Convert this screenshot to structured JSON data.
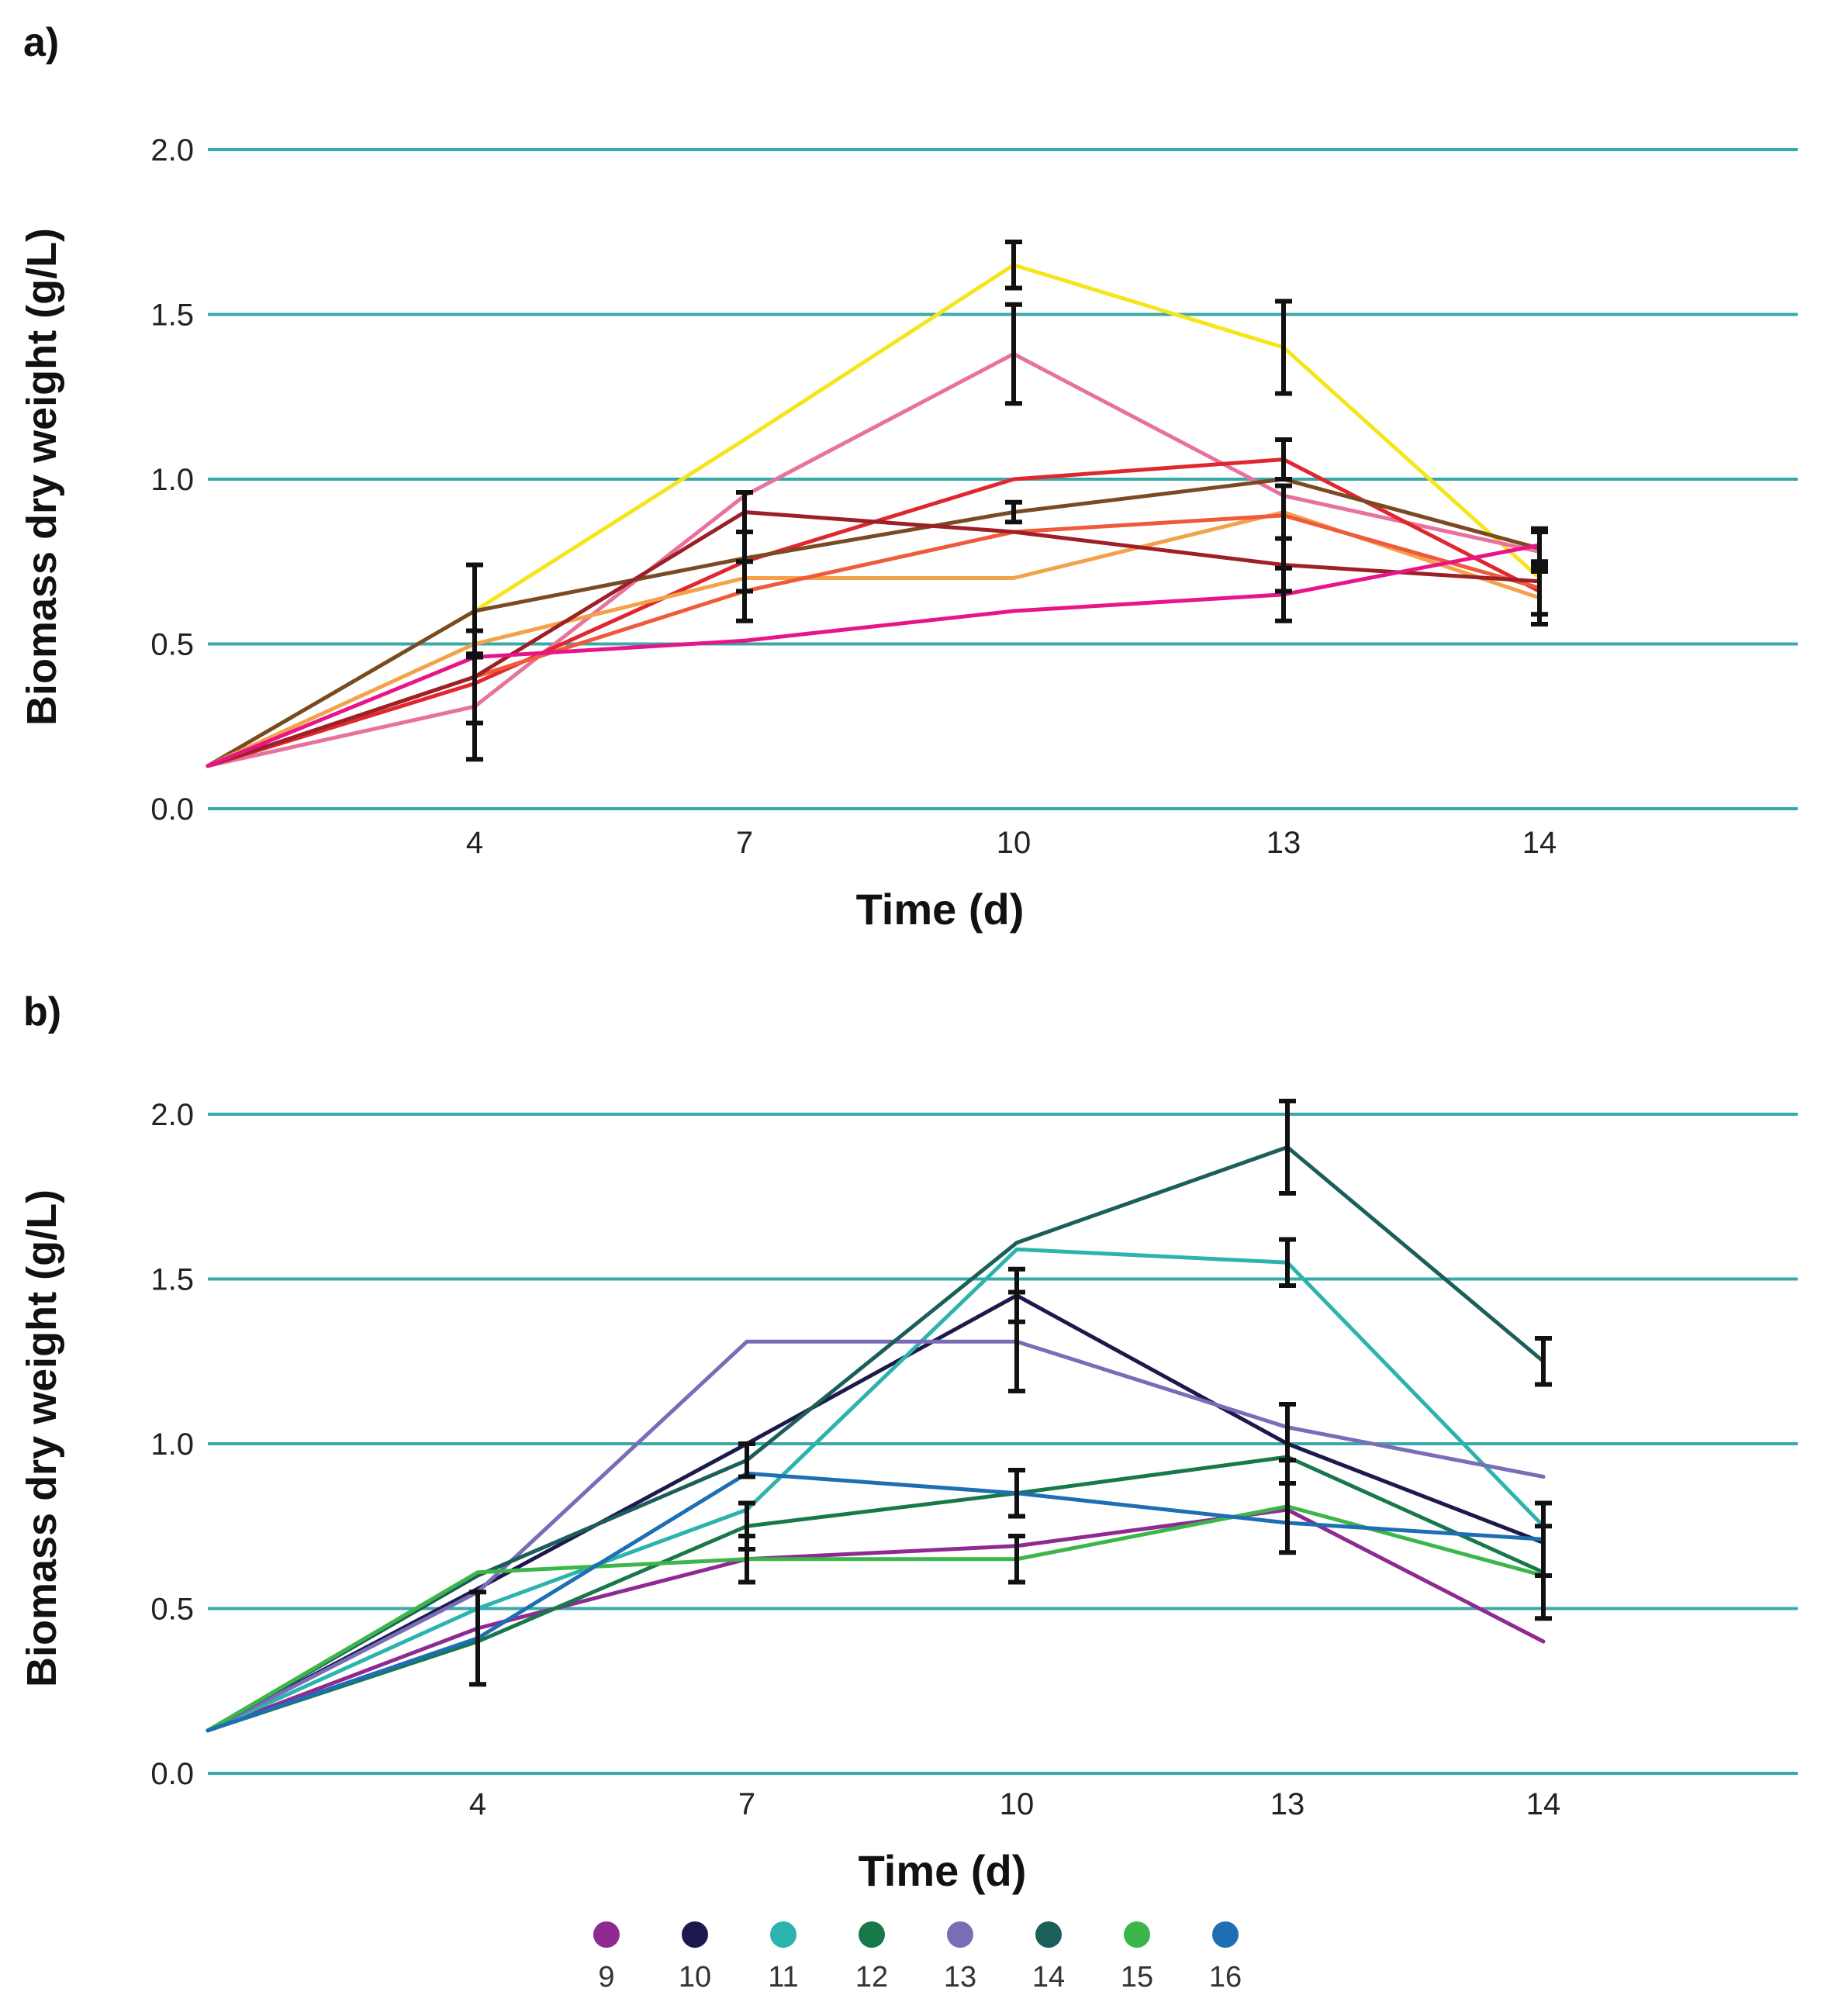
{
  "chart_data": [
    {
      "panel_label": "a)",
      "type": "line",
      "xlabel": "Time (d)",
      "ylabel": "Biomass dry weight (g/L)",
      "ylim": [
        0,
        2.0
      ],
      "y_ticks": [
        {
          "value": 0.0,
          "label": "0.0"
        },
        {
          "value": 0.5,
          "label": "0.5"
        },
        {
          "value": 1.0,
          "label": "1.0"
        },
        {
          "value": 1.5,
          "label": "1.5"
        },
        {
          "value": 2.0,
          "label": "2.0"
        }
      ],
      "gridline_color": "#3aa8a8",
      "x_categories": [
        "",
        "4",
        "7",
        "10",
        "13",
        "14"
      ],
      "series": [
        {
          "color": "#f5e51a",
          "values": [
            0.13,
            0.6,
            1.12,
            1.65,
            1.4,
            0.7
          ],
          "err": [
            0,
            0.14,
            0,
            0.07,
            0.14,
            0
          ]
        },
        {
          "color": "#e8729e",
          "values": [
            0.13,
            0.31,
            0.95,
            1.38,
            0.95,
            0.78
          ],
          "err": [
            0,
            0.16,
            0,
            0.15,
            0,
            0
          ]
        },
        {
          "color": "#e0262e",
          "values": [
            0.13,
            0.38,
            0.75,
            1.0,
            1.06,
            0.66
          ],
          "err": [
            0,
            0,
            0.09,
            0,
            0.06,
            0.07
          ]
        },
        {
          "color": "#7a4a24",
          "values": [
            0.13,
            0.6,
            0.76,
            0.9,
            1.0,
            0.79
          ],
          "err": [
            0,
            0,
            0,
            0.03,
            0,
            0.05
          ]
        },
        {
          "color": "#f3a24a",
          "values": [
            0.13,
            0.5,
            0.7,
            0.7,
            0.9,
            0.64
          ],
          "err": [
            0,
            0,
            0,
            0,
            0.08,
            0.08
          ]
        },
        {
          "color": "#ee5a3a",
          "values": [
            0.13,
            0.4,
            0.66,
            0.84,
            0.89,
            0.67
          ],
          "err": [
            0,
            0,
            0.09,
            0,
            0,
            0
          ]
        },
        {
          "color": "#9c2026",
          "values": [
            0.13,
            0.4,
            0.9,
            0.84,
            0.74,
            0.69
          ],
          "err": [
            0,
            0.14,
            0.06,
            0,
            0.08,
            0
          ]
        },
        {
          "color": "#e8148a",
          "values": [
            0.13,
            0.46,
            0.51,
            0.6,
            0.65,
            0.8
          ],
          "err": [
            0,
            0,
            0,
            0,
            0.08,
            0.05
          ]
        }
      ]
    },
    {
      "panel_label": "b)",
      "type": "line",
      "xlabel": "Time (d)",
      "ylabel": "Biomass dry weight (g/L)",
      "ylim": [
        0,
        2.0
      ],
      "y_ticks": [
        {
          "value": 0.0,
          "label": "0.0"
        },
        {
          "value": 0.5,
          "label": "0.5"
        },
        {
          "value": 1.0,
          "label": "1.0"
        },
        {
          "value": 1.5,
          "label": "1.5"
        },
        {
          "value": 2.0,
          "label": "2.0"
        }
      ],
      "gridline_color": "#3aa8a8",
      "x_categories": [
        "",
        "4",
        "7",
        "10",
        "13",
        "14"
      ],
      "series": [
        {
          "name": "9",
          "color": "#8e2a91",
          "values": [
            0.13,
            0.44,
            0.65,
            0.69,
            0.8,
            0.4
          ],
          "err": [
            0,
            0,
            0,
            0,
            0,
            0
          ]
        },
        {
          "name": "10",
          "color": "#1c1a4d",
          "values": [
            0.13,
            0.56,
            1.0,
            1.45,
            1.0,
            0.7
          ],
          "err": [
            0,
            0,
            0,
            0.08,
            0.12,
            0
          ]
        },
        {
          "name": "11",
          "color": "#2db3ad",
          "values": [
            0.13,
            0.5,
            0.8,
            1.59,
            1.55,
            0.75
          ],
          "err": [
            0,
            0,
            0,
            0,
            0.07,
            0
          ]
        },
        {
          "name": "12",
          "color": "#17794a",
          "values": [
            0.13,
            0.4,
            0.75,
            0.85,
            0.96,
            0.61
          ],
          "err": [
            0,
            0,
            0.07,
            0.07,
            0,
            0.14
          ]
        },
        {
          "name": "13",
          "color": "#7a6cb6",
          "values": [
            0.13,
            0.55,
            1.31,
            1.31,
            1.05,
            0.9
          ],
          "err": [
            0,
            0,
            0,
            0.15,
            0,
            0
          ]
        },
        {
          "name": "14",
          "color": "#1b5e5a",
          "values": [
            0.13,
            0.6,
            0.95,
            1.61,
            1.9,
            1.25
          ],
          "err": [
            0,
            0,
            0.05,
            0,
            0.14,
            0.07
          ]
        },
        {
          "name": "15",
          "color": "#3cb54a",
          "values": [
            0.13,
            0.61,
            0.65,
            0.65,
            0.81,
            0.6
          ],
          "err": [
            0,
            0,
            0.07,
            0.07,
            0.14,
            0
          ]
        },
        {
          "name": "16",
          "color": "#1e6eb4",
          "values": [
            0.13,
            0.41,
            0.91,
            0.85,
            0.76,
            0.71
          ],
          "err": [
            0,
            0.14,
            0,
            0,
            0,
            0.11
          ]
        }
      ],
      "legend": [
        "9",
        "10",
        "11",
        "12",
        "13",
        "14",
        "15",
        "16"
      ],
      "legend_position": "bottom-center"
    }
  ]
}
